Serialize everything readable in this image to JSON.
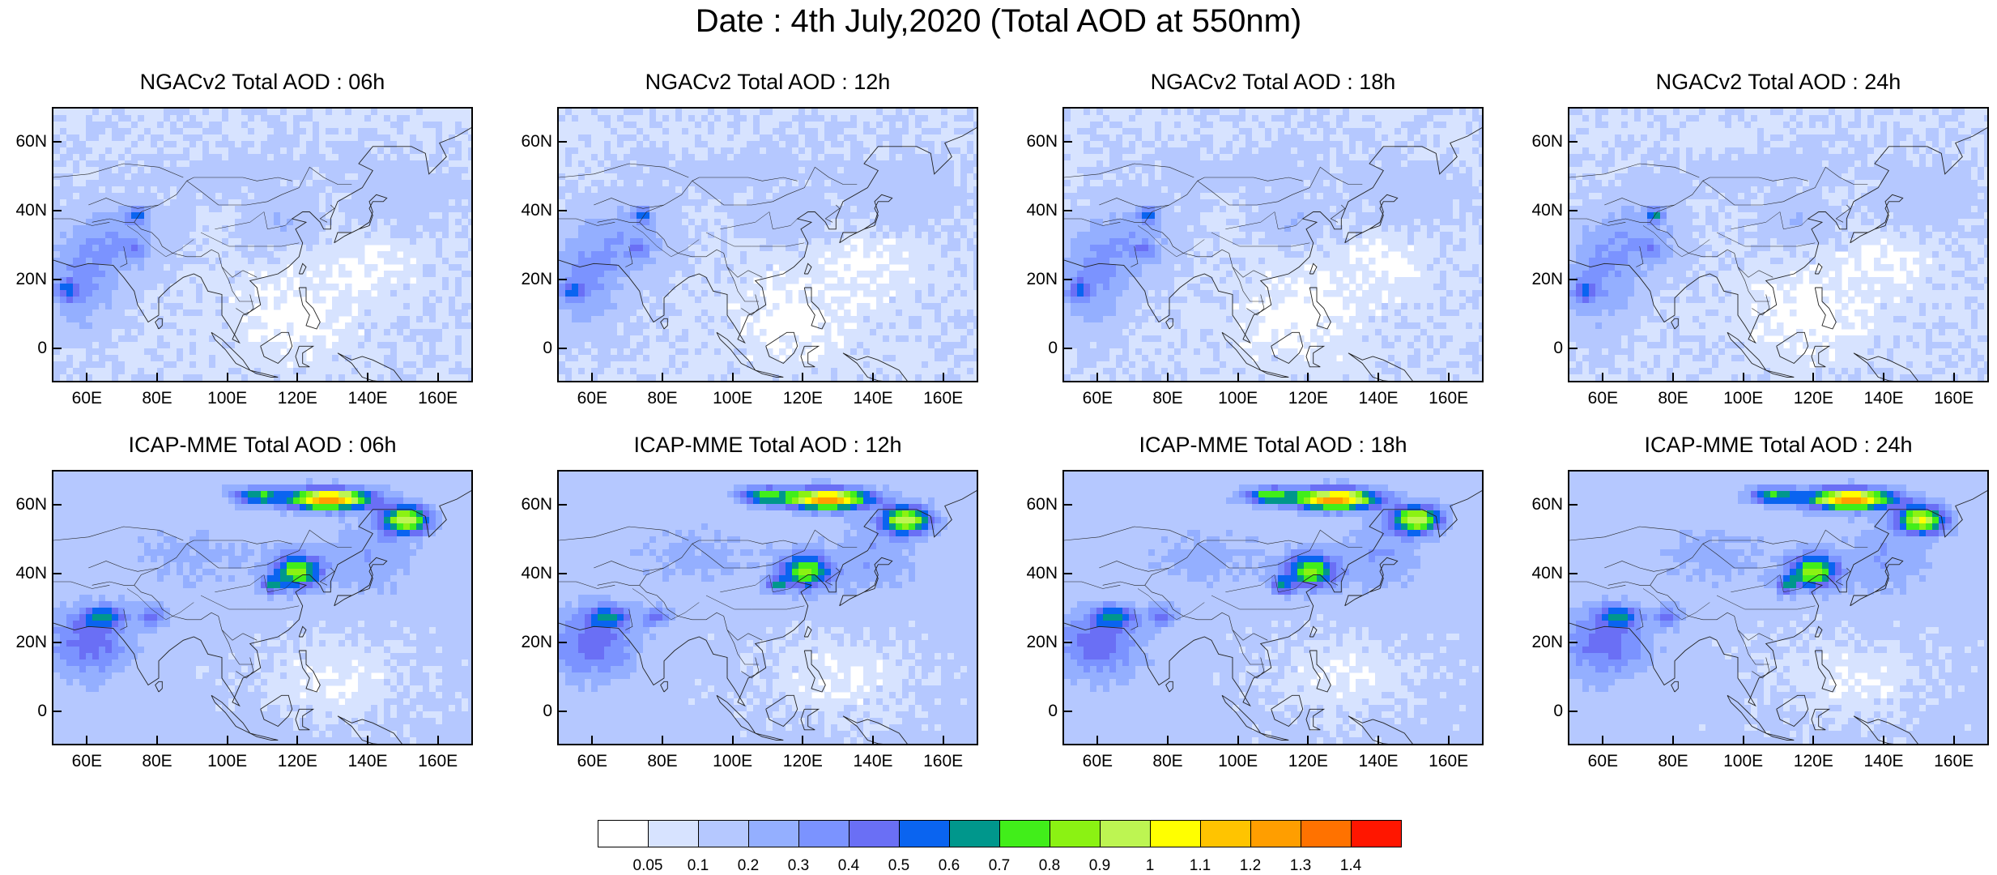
{
  "title": "Date : 4th July,2020 (Total AOD at 550nm)",
  "panels": [
    {
      "title": "NGACv2 Total AOD : 06h",
      "model": "NGAC",
      "seed": 11
    },
    {
      "title": "NGACv2 Total AOD : 12h",
      "model": "NGAC",
      "seed": 23
    },
    {
      "title": "NGACv2 Total AOD : 18h",
      "model": "NGAC",
      "seed": 37
    },
    {
      "title": "NGACv2 Total AOD : 24h",
      "model": "NGAC",
      "seed": 41
    },
    {
      "title": "ICAP-MME Total AOD : 06h",
      "model": "ICAP",
      "seed": 53
    },
    {
      "title": "ICAP-MME Total AOD : 12h",
      "model": "ICAP",
      "seed": 67
    },
    {
      "title": "ICAP-MME Total AOD : 18h",
      "model": "ICAP",
      "seed": 71
    },
    {
      "title": "ICAP-MME Total AOD : 24h",
      "model": "ICAP",
      "seed": 89
    }
  ],
  "lat_labels": [
    "60N",
    "40N",
    "20N",
    "0"
  ],
  "lat_values": [
    60,
    40,
    20,
    0
  ],
  "lon_labels": [
    "60E",
    "80E",
    "100E",
    "120E",
    "140E",
    "160E"
  ],
  "lon_values": [
    60,
    80,
    100,
    120,
    140,
    160
  ],
  "map_extent": {
    "lon": [
      50,
      170
    ],
    "lat": [
      -10,
      70
    ]
  },
  "colorbar": {
    "labels": [
      "0.05",
      "0.1",
      "0.2",
      "0.3",
      "0.4",
      "0.5",
      "0.6",
      "0.7",
      "0.8",
      "0.9",
      "1",
      "1.1",
      "1.2",
      "1.3",
      "1.4"
    ],
    "colors": [
      "#ffffff",
      "#d7e3ff",
      "#b5c8ff",
      "#94afff",
      "#7b93ff",
      "#6a6ff5",
      "#0a64f0",
      "#00978c",
      "#41ee1a",
      "#8bf213",
      "#bdf552",
      "#ffff00",
      "#ffc400",
      "#ff9e00",
      "#ff7200",
      "#ff1600"
    ]
  }
}
